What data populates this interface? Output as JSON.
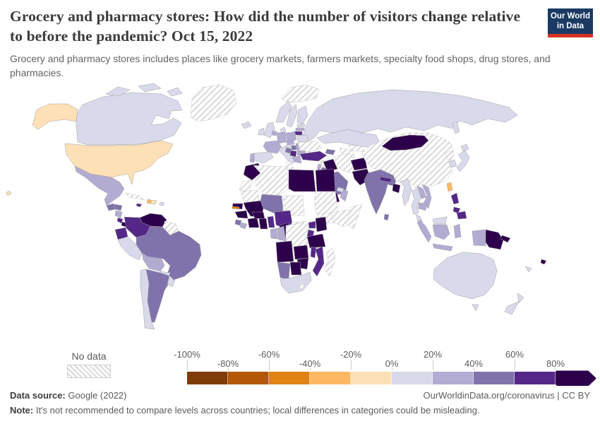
{
  "header": {
    "title": "Grocery and pharmacy stores: How did the number of visitors change relative to before the pandemic? Oct 15, 2022",
    "subtitle": "Grocery and pharmacy stores includes places like grocery markets, farmers markets, specialty food shops, drug stores, and pharmacies.",
    "logo_line1": "Our World",
    "logo_line2": "in Data"
  },
  "legend": {
    "no_data_label": "No data",
    "ticks": [
      "-100%",
      "-80%",
      "-60%",
      "-40%",
      "-20%",
      "0%",
      "20%",
      "40%",
      "60%",
      "80%"
    ]
  },
  "footer": {
    "source_label": "Data source:",
    "source_value": "Google (2022)",
    "link": "OurWorldinData.org/coronavirus | CC BY",
    "note_label": "Note:",
    "note_value": "It's not recommended to compare levels across countries; local differences in categories could be misleading."
  },
  "chart_data": {
    "type": "heatmap",
    "subtype": "choropleth-world-map",
    "title": "Change in number of visitors to grocery and pharmacy stores relative to pre-pandemic baseline",
    "date": "Oct 15, 2022",
    "unit": "%",
    "legend_position": "bottom",
    "no_data_style": "hatched",
    "bins": [
      {
        "range": "-100% to -80%",
        "color": "#7f3b08"
      },
      {
        "range": "-80% to -60%",
        "color": "#b35806"
      },
      {
        "range": "-60% to -40%",
        "color": "#e08214"
      },
      {
        "range": "-40% to -20%",
        "color": "#fdb863"
      },
      {
        "range": "-20% to 0%",
        "color": "#fee0b6"
      },
      {
        "range": "0% to 20%",
        "color": "#d8daeb"
      },
      {
        "range": "20% to 40%",
        "color": "#b2abd2"
      },
      {
        "range": "40% to 60%",
        "color": "#8073ac"
      },
      {
        "range": "60% to 80%",
        "color": "#542788"
      },
      {
        "range": "80% and above",
        "color": "#2d004b"
      }
    ],
    "countries": {
      "United States": 4,
      "Canada": 5,
      "Greenland": "no_data",
      "Iceland": 5,
      "Svalbard": "no_data",
      "Mexico": 6,
      "Guatemala": 7,
      "Honduras": 7,
      "Nicaragua": 6,
      "Costa Rica": 8,
      "Panama": 9,
      "Cuba": "no_data",
      "Jamaica": 8,
      "Haiti": 3,
      "Dominican Republic": 4,
      "Puerto Rico": 5,
      "Venezuela": 9,
      "Colombia": 8,
      "Guyana": "no_data",
      "Ecuador": 8,
      "Peru": 5,
      "Brazil": 7,
      "Bolivia": 6,
      "Paraguay": 5,
      "Chile": 5,
      "Argentina": 7,
      "Uruguay": 5,
      "United Kingdom": 5,
      "Ireland": 5,
      "Norway": 5,
      "Sweden": 5,
      "Finland": 5,
      "Denmark": 5,
      "Estonia": 5,
      "Latvia": 6,
      "Lithuania": 8,
      "Belarus": 5,
      "Poland": 6,
      "Germany": 6,
      "Belgium": 6,
      "France": 6,
      "Spain": 5,
      "Portugal": 6,
      "Austria": 5,
      "Czechia": 6,
      "Italy": 5,
      "Hungary": 7,
      "Croatia": 7,
      "Serbia": 8,
      "Romania": 6,
      "Bulgaria": 6,
      "Greece": 6,
      "Ukraine": "no_data",
      "Russia": 5,
      "Kazakhstan": 5,
      "Uzbekistan": "no_data",
      "Turkmenistan": "no_data",
      "Kyrgyzstan": 8,
      "Azerbaijan": 7,
      "Turkey": 8,
      "Syria": "no_data",
      "Israel": 6,
      "Jordan": 7,
      "Iraq": 9,
      "Iran": "no_data",
      "Afghanistan": 9,
      "Pakistan": 9,
      "Saudi Arabia": 7,
      "Yemen": 9,
      "Oman": 6,
      "United Arab Emirates": 5,
      "India": 7,
      "Nepal": 8,
      "Bangladesh": 9,
      "Sri Lanka": 7,
      "Myanmar": 5,
      "Thailand": 5,
      "Laos": 6,
      "Vietnam": 6,
      "Cambodia": 6,
      "Malaysia": 5,
      "Indonesia": 6,
      "Philippines": 8,
      "Taiwan": 3,
      "China": "no_data",
      "Mongolia": 9,
      "North Korea": "no_data",
      "South Korea": 5,
      "Japan": 5,
      "Morocco": 9,
      "Algeria": "no_data",
      "Tunisia": "no_data",
      "Libya": 9,
      "Egypt": 9,
      "Western Sahara": "no_data",
      "Mauritania": "no_data",
      "Mali": 9,
      "Senegal": 9,
      "Gambia": 2,
      "Guinea": 9,
      "Sierra Leone": 7,
      "Liberia": 6,
      "Cote d'Ivoire": 9,
      "Burkina Faso": 9,
      "Ghana": 9,
      "Benin": 8,
      "Nigeria": 8,
      "Niger": 7,
      "Chad": "no_data",
      "Sudan": "no_data",
      "Ethiopia": "no_data",
      "Somalia": "no_data",
      "Cameroon": 9,
      "Central African Republic": "no_data",
      "South Sudan": "no_data",
      "Gabon": 6,
      "Congo": 6,
      "Democratic Republic of Congo": "no_data",
      "Uganda": 8,
      "Kenya": 9,
      "Rwanda": 8,
      "Tanzania": 9,
      "Angola": 9,
      "Zambia": 9,
      "Malawi": 8,
      "Mozambique": 8,
      "Zimbabwe": 9,
      "Botswana": 9,
      "Namibia": 7,
      "South Africa": 5,
      "Lesotho": "no_data",
      "Madagascar": "no_data",
      "Australia": 5,
      "New Zealand": 5,
      "New Caledonia": 5,
      "Papua New Guinea": 9,
      "Fiji": 9
    }
  }
}
